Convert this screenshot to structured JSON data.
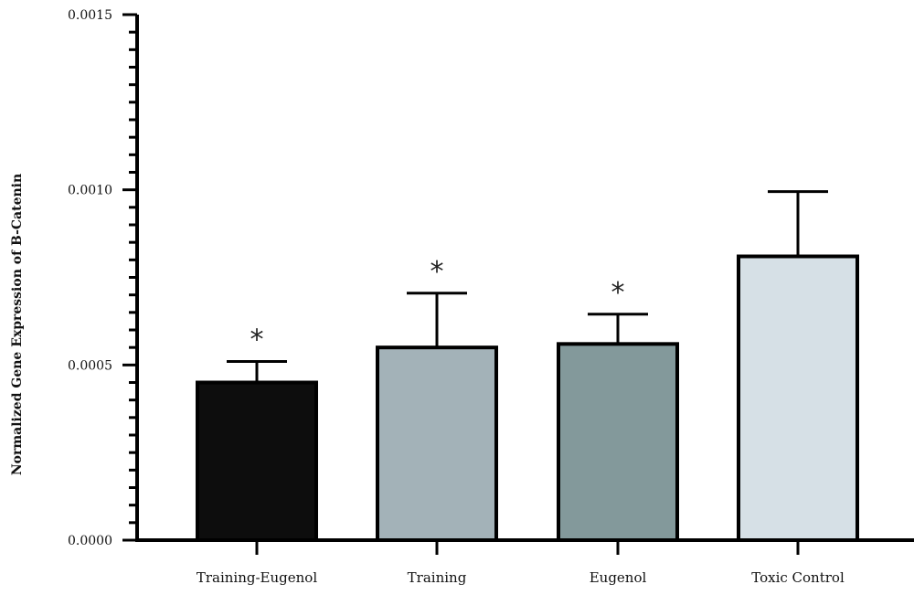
{
  "chart_data": {
    "type": "bar",
    "title": "",
    "xlabel": "",
    "ylabel": "Normalized Gene Expression of B-Catenin",
    "ylim": [
      0,
      0.0015
    ],
    "yticks": [
      "0.0000",
      "0.0005",
      "0.0010",
      "0.0015"
    ],
    "ytick_values": [
      0,
      0.0005,
      0.001,
      0.0015
    ],
    "categories": [
      "Training-Eugenol",
      "Training",
      "Eugenol",
      "Toxic Control"
    ],
    "values": [
      0.00045,
      0.00055,
      0.00056,
      0.00081
    ],
    "errors_upper": [
      0.00051,
      0.000705,
      0.000645,
      0.000995
    ],
    "significance": [
      "*",
      "*",
      "*",
      ""
    ],
    "colors": [
      "#0d0d0d",
      "#a3b2b8",
      "#83999b",
      "#d6e0e6"
    ],
    "grid": false,
    "legend": "none"
  }
}
